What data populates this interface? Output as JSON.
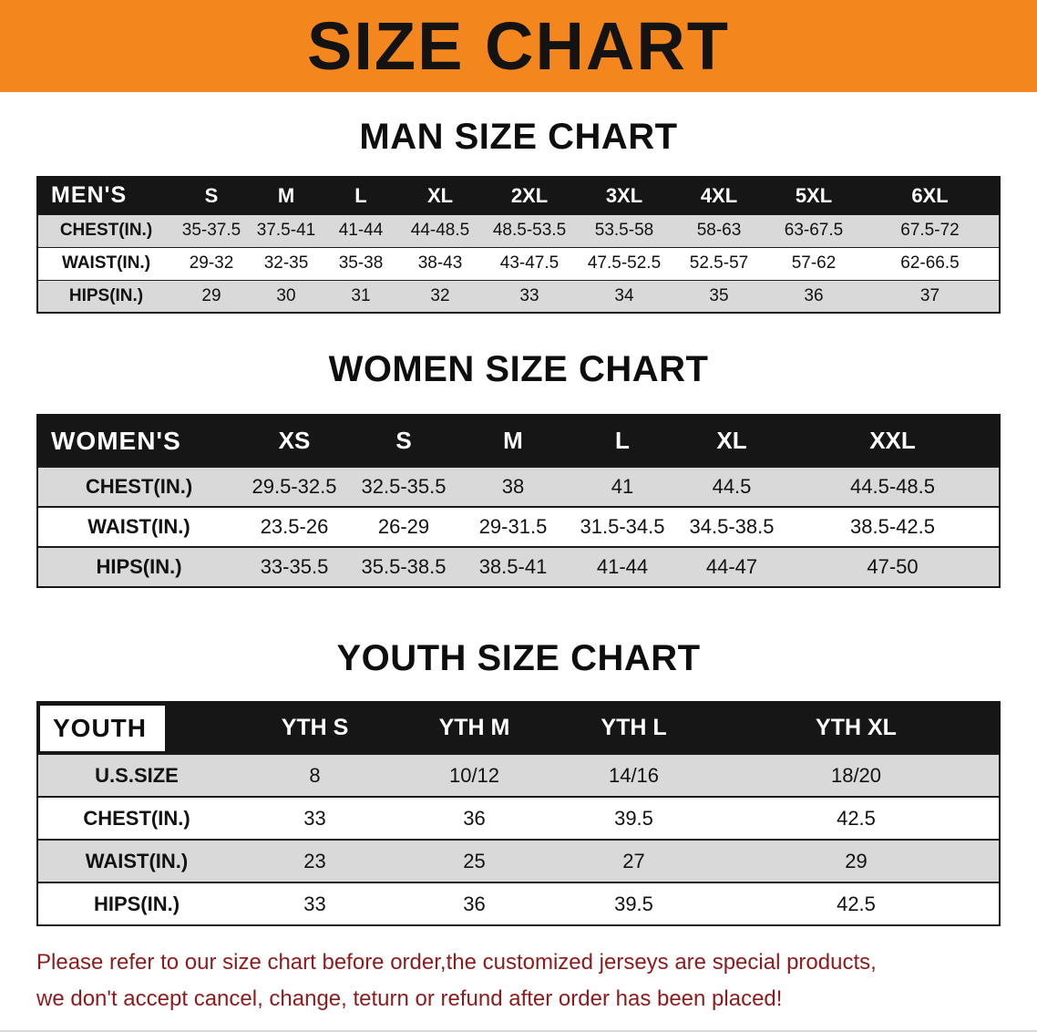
{
  "banner": {
    "title": "SIZE CHART"
  },
  "colors": {
    "banner_bg": "#F4861E",
    "table_header_bg": "#161616",
    "row_stripe": "#D9D9D9",
    "notice_text": "#8E1B1B"
  },
  "sections": [
    {
      "heading": "MAN SIZE CHART",
      "table": {
        "name": "mens-size-table",
        "header": [
          "MEN'S",
          "S",
          "M",
          "L",
          "XL",
          "2XL",
          "3XL",
          "4XL",
          "5XL",
          "6XL"
        ],
        "rows": [
          {
            "label": "CHEST(IN.)",
            "values": [
              "35-37.5",
              "37.5-41",
              "41-44",
              "44-48.5",
              "48.5-53.5",
              "53.5-58",
              "58-63",
              "63-67.5",
              "67.5-72"
            ]
          },
          {
            "label": "WAIST(IN.)",
            "values": [
              "29-32",
              "32-35",
              "35-38",
              "38-43",
              "43-47.5",
              "47.5-52.5",
              "52.5-57",
              "57-62",
              "62-66.5"
            ]
          },
          {
            "label": "HIPS(IN.)",
            "values": [
              "29",
              "30",
              "31",
              "32",
              "33",
              "34",
              "35",
              "36",
              "37"
            ]
          }
        ]
      }
    },
    {
      "heading": "WOMEN SIZE CHART",
      "table": {
        "name": "womens-size-table",
        "header": [
          "WOMEN'S",
          "XS",
          "S",
          "M",
          "L",
          "XL",
          "XXL"
        ],
        "rows": [
          {
            "label": "CHEST(IN.)",
            "values": [
              "29.5-32.5",
              "32.5-35.5",
              "38",
              "41",
              "44.5",
              "44.5-48.5"
            ]
          },
          {
            "label": "WAIST(IN.)",
            "values": [
              "23.5-26",
              "26-29",
              "29-31.5",
              "31.5-34.5",
              "34.5-38.5",
              "38.5-42.5"
            ]
          },
          {
            "label": "HIPS(IN.)",
            "values": [
              "33-35.5",
              "35.5-38.5",
              "38.5-41",
              "41-44",
              "44-47",
              "47-50"
            ]
          }
        ]
      }
    },
    {
      "heading": "YOUTH SIZE CHART",
      "table": {
        "name": "youth-size-table",
        "header": [
          "YOUTH",
          "YTH S",
          "YTH M",
          "YTH L",
          "YTH XL"
        ],
        "rows": [
          {
            "label": "U.S.SIZE",
            "values": [
              "8",
              "10/12",
              "14/16",
              "18/20"
            ]
          },
          {
            "label": "CHEST(IN.)",
            "values": [
              "33",
              "36",
              "39.5",
              "42.5"
            ]
          },
          {
            "label": "WAIST(IN.)",
            "values": [
              "23",
              "25",
              "27",
              "29"
            ]
          },
          {
            "label": "HIPS(IN.)",
            "values": [
              "33",
              "36",
              "39.5",
              "42.5"
            ]
          }
        ]
      }
    }
  ],
  "notice": {
    "line1": "Please refer to our size chart before order,the customized jerseys are special products,",
    "line2": "we don't accept cancel, change, teturn or refund after order has been placed!"
  }
}
